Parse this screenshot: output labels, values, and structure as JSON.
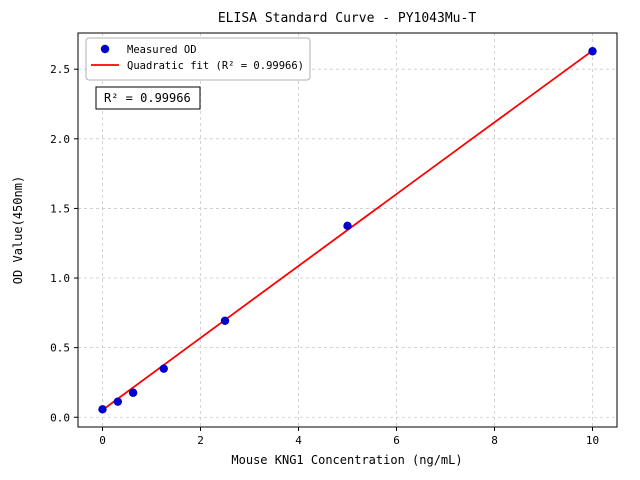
{
  "chart_data": {
    "type": "scatter",
    "title": "ELISA Standard Curve - PY1043Mu-T",
    "xlabel": "Mouse KNG1 Concentration (ng/mL)",
    "ylabel": "OD Value(450nm)",
    "xlim": [
      -0.5,
      10.5
    ],
    "ylim": [
      -0.07,
      2.76
    ],
    "xticks": [
      0,
      2,
      4,
      6,
      8,
      10
    ],
    "yticks": [
      0.0,
      0.5,
      1.0,
      1.5,
      2.0,
      2.5
    ],
    "grid": true,
    "grid_style": "dashed",
    "legend_position": "upper-left",
    "legend": {
      "entries": [
        {
          "label": "Measured OD",
          "handle": "dot",
          "color": "#0000cd"
        },
        {
          "label": "Quadratic fit (R² = 0.99966)",
          "handle": "line",
          "color": "#ff0000"
        }
      ]
    },
    "annotation": "R² = 0.99966",
    "series": [
      {
        "name": "Measured OD",
        "type": "scatter",
        "color": "#0000cd",
        "x": [
          0,
          0.313,
          0.625,
          1.25,
          2.5,
          5,
          10
        ],
        "y": [
          0.057,
          0.112,
          0.176,
          0.349,
          0.693,
          1.375,
          2.629
        ]
      },
      {
        "name": "Quadratic fit",
        "type": "line",
        "color": "#ff0000",
        "x": [
          0,
          2.5,
          5,
          7.5,
          10
        ],
        "y": [
          0.052,
          0.699,
          1.345,
          1.99,
          2.633
        ]
      }
    ]
  }
}
